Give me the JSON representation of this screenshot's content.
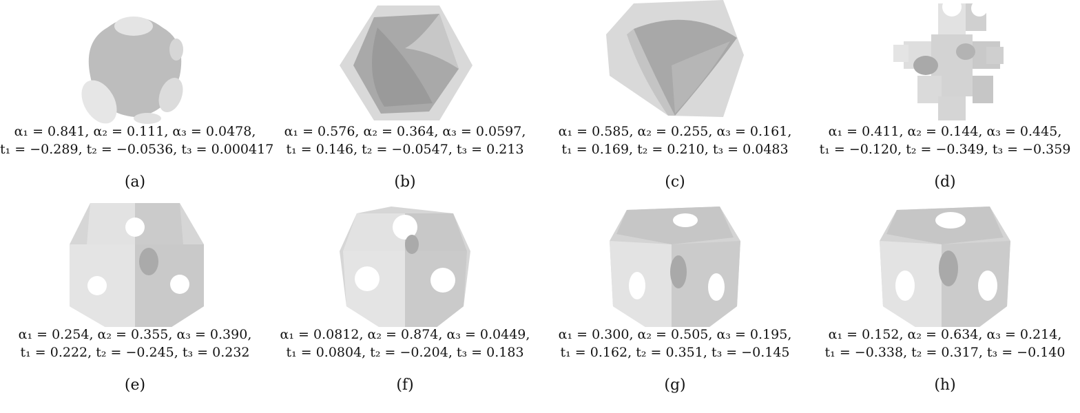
{
  "figure": {
    "panels": [
      {
        "label": "(a)",
        "line1": "α₁ = 0.841, α₂ = 0.111, α₃ = 0.0478,",
        "line2": "t₁ = −0.289, t₂ = −0.0536, t₃ = 0.000417",
        "shape": "rounded-cross-node"
      },
      {
        "label": "(b)",
        "line1": "α₁ = 0.576, α₂ = 0.364, α₃ = 0.0597,",
        "line2": "t₁ = 0.146, t₂ = −0.0547, t₃ = 0.213",
        "shape": "hollow-hexagon"
      },
      {
        "label": "(c)",
        "line1": "α₁ = 0.585, α₂ = 0.255, α₃ = 0.161,",
        "line2": "t₁ = 0.169, t₂ = 0.210, t₃ = 0.0483",
        "shape": "hollow-cube"
      },
      {
        "label": "(d)",
        "line1": "α₁ = 0.411, α₂ = 0.144, α₃ = 0.445,",
        "line2": "t₁ = −0.120, t₂ = −0.349, t₃ = −0.359",
        "shape": "branched-lattice"
      },
      {
        "label": "(e)",
        "line1": "α₁ = 0.254, α₂ = 0.355, α₃ = 0.390,",
        "line2": "t₁ = 0.222, t₂ = −0.245, t₃ = 0.232",
        "shape": "notched-cube"
      },
      {
        "label": "(f)",
        "line1": "α₁ = 0.0812, α₂ = 0.874, α₃ = 0.0449,",
        "line2": "t₁ = 0.0804, t₂ = −0.204, t₃ = 0.183",
        "shape": "notched-cube-small"
      },
      {
        "label": "(g)",
        "line1": "α₁ = 0.300, α₂ = 0.505, α₃ = 0.195,",
        "line2": "t₁ = 0.162, t₂ = 0.351, t₃ = −0.145",
        "shape": "perforated-cube"
      },
      {
        "label": "(h)",
        "line1": "α₁ = 0.152, α₂ = 0.634, α₃ = 0.214,",
        "line2": "t₁ = −0.338, t₂ = 0.317, t₃ = −0.140",
        "shape": "perforated-cube"
      }
    ],
    "colors": {
      "light": "#e4e4e4",
      "mid": "#cfcfcf",
      "dark": "#a9a9a9",
      "hole": "#ffffff"
    }
  }
}
